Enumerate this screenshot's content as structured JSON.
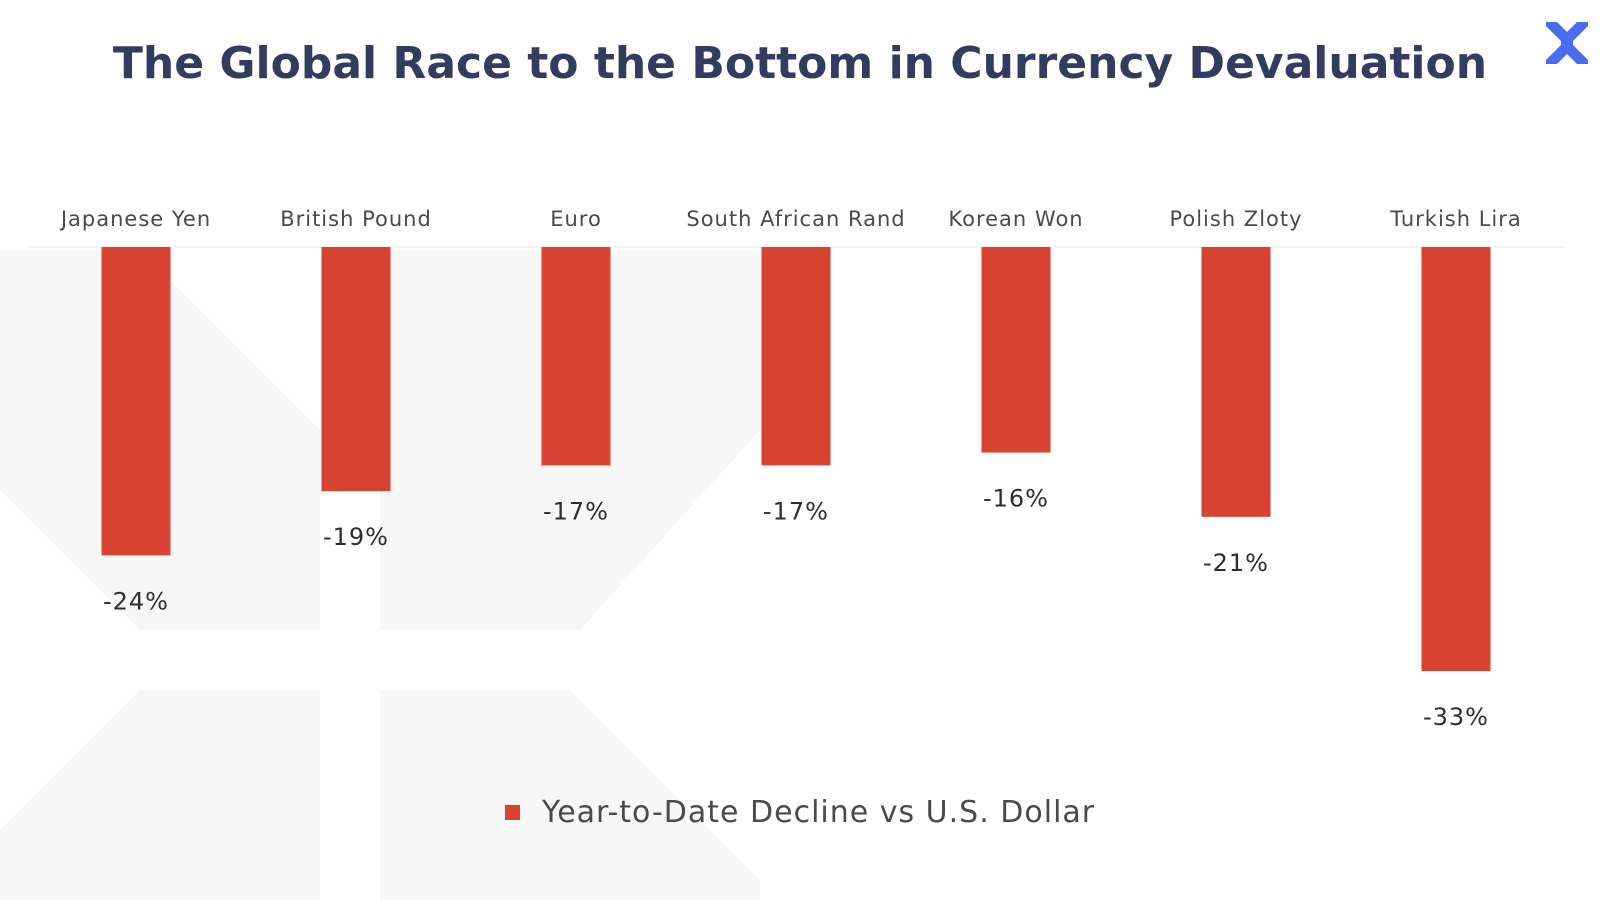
{
  "header": {
    "title": "The Global Race to the Bottom in Currency Devaluation"
  },
  "logo": {
    "icon": "x-logo-icon",
    "color": "#4a6cf0"
  },
  "chart_data": {
    "type": "bar",
    "orientation": "vertical-negative",
    "categories": [
      "Japanese Yen",
      "British Pound",
      "Euro",
      "South African Rand",
      "Korean Won",
      "Polish Zloty",
      "Turkish Lira"
    ],
    "series": [
      {
        "name": "Year-to-Date Decline vs U.S. Dollar",
        "values": [
          -24,
          -19,
          -17,
          -17,
          -16,
          -21,
          -33
        ],
        "color": "#d84332"
      }
    ],
    "value_labels": [
      "-24%",
      "-19%",
      "-17%",
      "-17%",
      "-16%",
      "-21%",
      "-33%"
    ],
    "unit": "%",
    "ylim": [
      -33,
      0
    ],
    "axis_position": "top",
    "grid": false,
    "legend": "bottom-center",
    "title": "The Global Race to the Bottom in Currency Devaluation"
  },
  "colors": {
    "bar": "#d84332",
    "title": "#323c5e",
    "text": "#4a4a4a",
    "axis_line": "#e6e6e6",
    "watermark": "#f7f7f7"
  }
}
